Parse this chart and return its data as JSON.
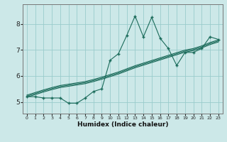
{
  "xlabel": "Humidex (Indice chaleur)",
  "background_color": "#cce8e8",
  "grid_color": "#99cccc",
  "line_color": "#1a6b5a",
  "x_values": [
    0,
    1,
    2,
    3,
    4,
    5,
    6,
    7,
    8,
    9,
    10,
    11,
    12,
    13,
    14,
    15,
    16,
    17,
    18,
    19,
    20,
    21,
    22,
    23
  ],
  "y_data": [
    5.2,
    5.2,
    5.15,
    5.15,
    5.15,
    4.95,
    4.95,
    5.15,
    5.4,
    5.5,
    6.6,
    6.85,
    7.55,
    8.3,
    7.5,
    8.25,
    7.45,
    7.05,
    6.4,
    6.9,
    6.9,
    7.05,
    7.5,
    7.4
  ],
  "y_line1": [
    5.18,
    5.28,
    5.38,
    5.47,
    5.55,
    5.6,
    5.65,
    5.7,
    5.78,
    5.87,
    5.97,
    6.07,
    6.19,
    6.31,
    6.41,
    6.51,
    6.61,
    6.71,
    6.81,
    6.91,
    6.97,
    7.07,
    7.2,
    7.3
  ],
  "y_line2": [
    5.22,
    5.32,
    5.42,
    5.51,
    5.59,
    5.64,
    5.69,
    5.74,
    5.82,
    5.91,
    6.01,
    6.11,
    6.23,
    6.35,
    6.45,
    6.55,
    6.65,
    6.75,
    6.85,
    6.95,
    7.01,
    7.11,
    7.24,
    7.34
  ],
  "y_line3": [
    5.26,
    5.36,
    5.46,
    5.55,
    5.63,
    5.68,
    5.73,
    5.78,
    5.86,
    5.95,
    6.05,
    6.15,
    6.27,
    6.39,
    6.49,
    6.59,
    6.69,
    6.79,
    6.89,
    6.99,
    7.05,
    7.15,
    7.28,
    7.38
  ],
  "xlim": [
    -0.5,
    23.5
  ],
  "ylim": [
    4.55,
    8.75
  ],
  "yticks": [
    5,
    6,
    7,
    8
  ],
  "xticks": [
    0,
    1,
    2,
    3,
    4,
    5,
    6,
    7,
    8,
    9,
    10,
    11,
    12,
    13,
    14,
    15,
    16,
    17,
    18,
    19,
    20,
    21,
    22,
    23
  ]
}
